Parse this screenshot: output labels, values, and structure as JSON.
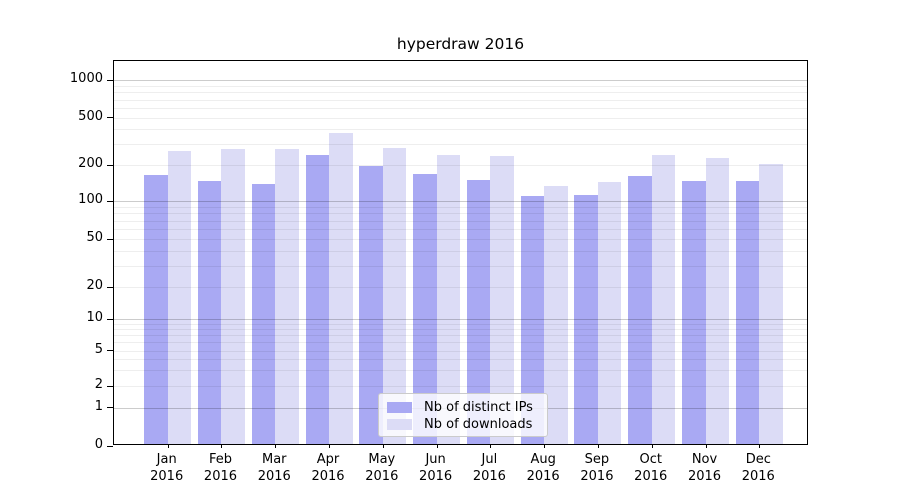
{
  "chart_data": {
    "type": "bar",
    "title": "hyperdraw 2016",
    "categories": [
      "Jan",
      "Feb",
      "Mar",
      "Apr",
      "May",
      "Jun",
      "Jul",
      "Aug",
      "Sep",
      "Oct",
      "Nov",
      "Dec"
    ],
    "x_year": "2016",
    "series": [
      {
        "name": "Nb of distinct IPs",
        "color": "#a9a9f3",
        "values": [
          160,
          142,
          134,
          236,
          189,
          162,
          145,
          106,
          108,
          156,
          143,
          143
        ]
      },
      {
        "name": "Nb of downloads",
        "color": "#dcdcf6",
        "values": [
          253,
          263,
          265,
          360,
          269,
          235,
          230,
          129,
          140,
          235,
          220,
          198
        ]
      }
    ],
    "yscale": "symlog",
    "ytick_labels": [
      0,
      1,
      2,
      5,
      10,
      20,
      50,
      100,
      200,
      500,
      1000
    ],
    "ylim": [
      0,
      1450
    ],
    "grid": "both",
    "legend_position": "lower-center"
  }
}
